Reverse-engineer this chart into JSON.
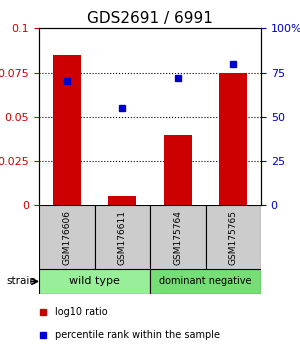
{
  "title": "GDS2691 / 6991",
  "samples": [
    "GSM176606",
    "GSM176611",
    "GSM175764",
    "GSM175765"
  ],
  "bar_values": [
    0.085,
    0.005,
    0.04,
    0.075
  ],
  "dot_values_pct": [
    70,
    55,
    72,
    80
  ],
  "bar_color": "#cc0000",
  "dot_color": "#0000cc",
  "ylim_left": [
    0,
    0.1
  ],
  "ylim_right": [
    0,
    100
  ],
  "yticks_left": [
    0,
    0.025,
    0.05,
    0.075,
    0.1
  ],
  "ytick_labels_left": [
    "0",
    "0.025",
    "0.05",
    "0.075",
    "0.1"
  ],
  "ytick_labels_right": [
    "0",
    "25",
    "50",
    "75",
    "100%"
  ],
  "gridlines": [
    0.025,
    0.05,
    0.075
  ],
  "groups": [
    {
      "label": "wild type",
      "indices": [
        0,
        1
      ],
      "color": "#99ee99"
    },
    {
      "label": "dominant negative",
      "indices": [
        2,
        3
      ],
      "color": "#77dd77"
    }
  ],
  "strain_label": "strain",
  "legend": [
    {
      "label": "log10 ratio",
      "color": "#cc0000"
    },
    {
      "label": "percentile rank within the sample",
      "color": "#0000cc"
    }
  ],
  "sample_box_color": "#cccccc",
  "bar_width": 0.5,
  "title_fontsize": 11,
  "tick_fontsize": 8,
  "label_fontsize": 7.5
}
